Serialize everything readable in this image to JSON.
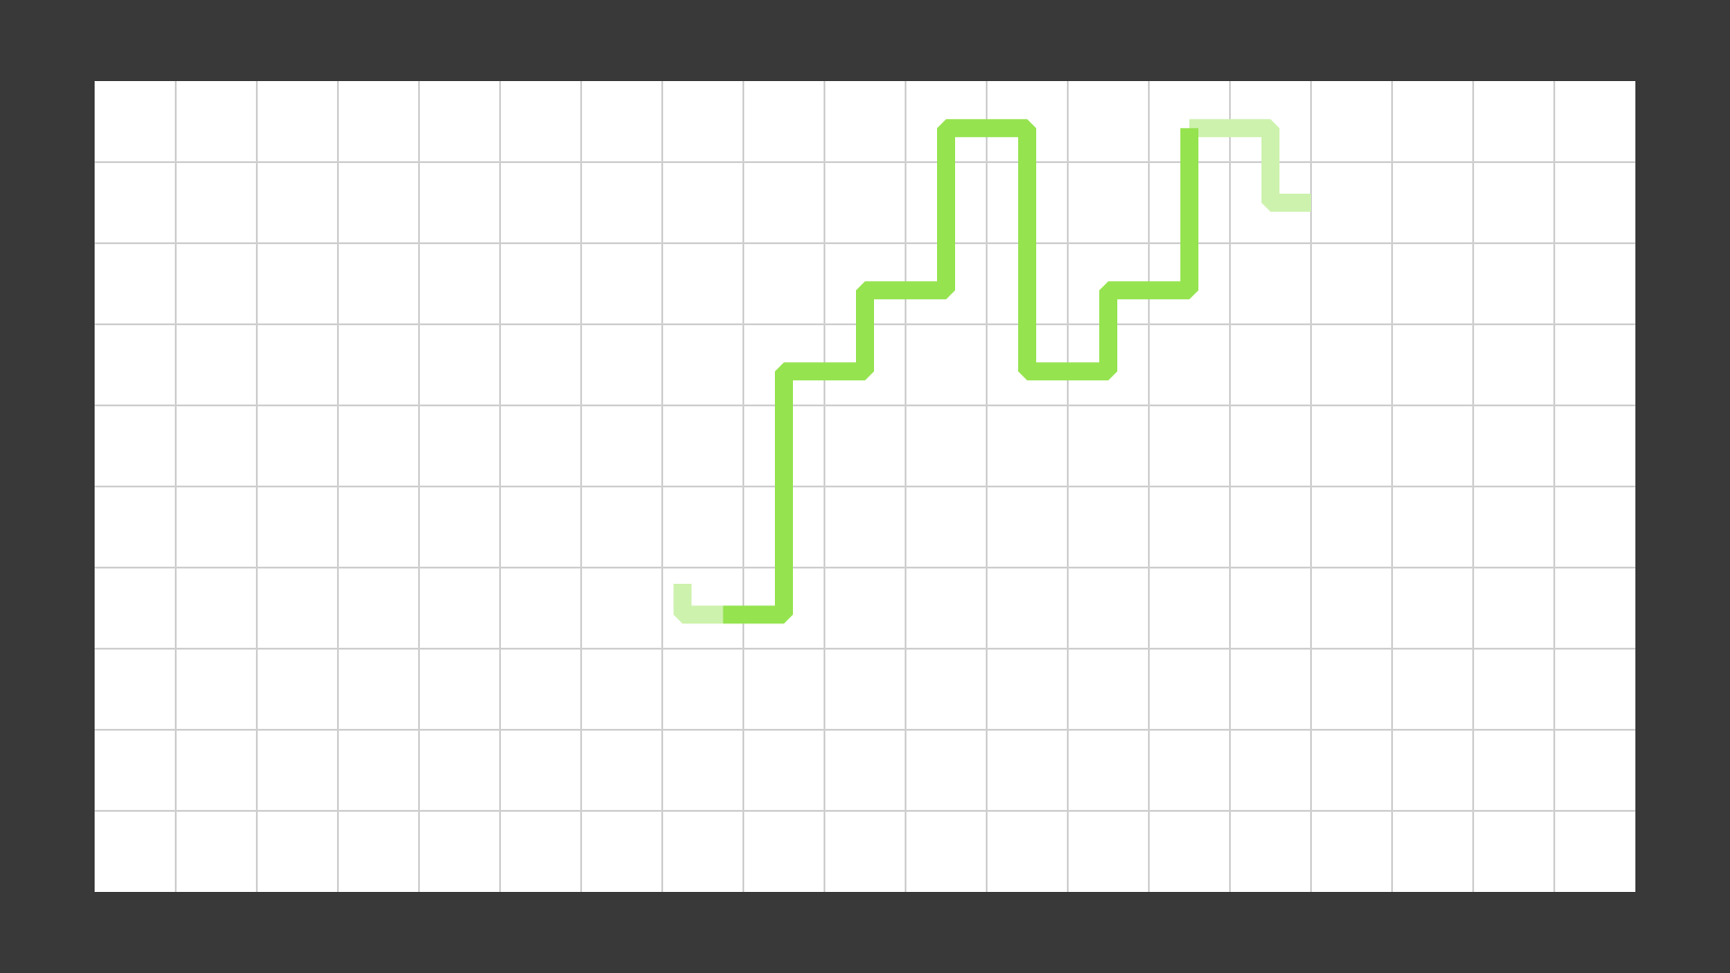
{
  "colors": {
    "background": "#393939",
    "board": "#ffffff",
    "grid_line": "#cfcfcf",
    "path": "#95e34f",
    "path_faded": "#cdf2ad"
  },
  "grid": {
    "columns": 19,
    "rows": 10
  },
  "path": {
    "points": [
      [
        7.75,
        6.58
      ],
      [
        8.5,
        6.58
      ],
      [
        8.5,
        3.58
      ],
      [
        9.5,
        3.58
      ],
      [
        9.5,
        2.58
      ],
      [
        10.5,
        2.58
      ],
      [
        10.5,
        0.58
      ],
      [
        11.5,
        0.58
      ],
      [
        11.5,
        3.58
      ],
      [
        12.5,
        3.58
      ],
      [
        12.5,
        2.58
      ],
      [
        13.5,
        2.58
      ],
      [
        13.5,
        0.58
      ]
    ],
    "tail": [
      [
        7.25,
        6.2
      ],
      [
        7.25,
        6.58
      ],
      [
        7.75,
        6.58
      ]
    ],
    "head": [
      [
        13.5,
        0.58
      ],
      [
        14.5,
        0.58
      ],
      [
        14.5,
        1.1
      ],
      [
        14.5,
        1.5
      ],
      [
        15.0,
        1.5
      ]
    ]
  }
}
